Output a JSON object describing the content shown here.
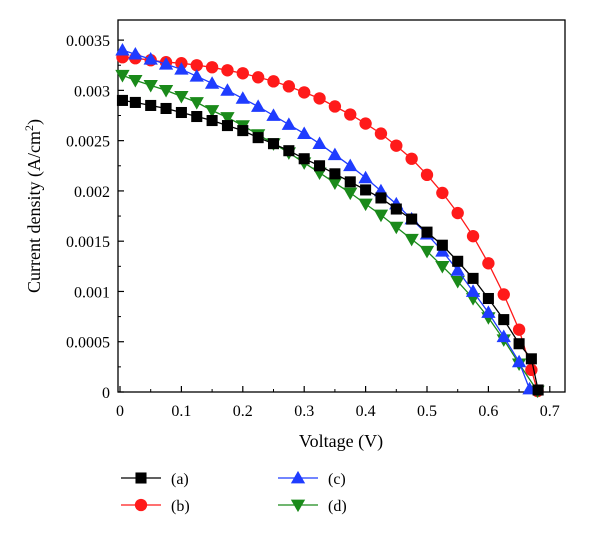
{
  "chart_data": {
    "type": "line",
    "title": "",
    "xlabel": "Voltage (V)",
    "ylabel": "Current density (A/cm²)",
    "ylabel_parts": {
      "main": "Current density (A/cm",
      "sup": "2",
      "tail": ")"
    },
    "xlim": [
      0,
      0.75
    ],
    "ylim": [
      0,
      0.0037
    ],
    "x_ticks": [
      "0",
      "0.1",
      "0.2",
      "0.3",
      "0.4",
      "0.5",
      "0.6",
      "0.7"
    ],
    "y_ticks": [
      "0",
      "0.0005",
      "0.001",
      "0.0015",
      "0.002",
      "0.0025",
      "0.003",
      "0.0035"
    ],
    "grid": false,
    "legend_position": "bottom",
    "series": [
      {
        "name": "(a)",
        "color": "#000000",
        "marker": "square",
        "x": [
          0.004,
          0.025,
          0.05,
          0.075,
          0.1,
          0.125,
          0.15,
          0.175,
          0.2,
          0.225,
          0.25,
          0.275,
          0.3,
          0.325,
          0.35,
          0.375,
          0.4,
          0.425,
          0.45,
          0.475,
          0.5,
          0.525,
          0.55,
          0.575,
          0.6,
          0.625,
          0.65,
          0.67,
          0.681
        ],
        "y": [
          0.0029,
          0.00288,
          0.00285,
          0.00282,
          0.00278,
          0.00274,
          0.0027,
          0.00265,
          0.0026,
          0.00253,
          0.00247,
          0.0024,
          0.00232,
          0.00225,
          0.00217,
          0.00209,
          0.00201,
          0.00193,
          0.00182,
          0.00172,
          0.00159,
          0.00146,
          0.0013,
          0.00113,
          0.00093,
          0.00072,
          0.00048,
          0.00033,
          2e-05
        ]
      },
      {
        "name": "(b)",
        "color": "#ff1a1a",
        "marker": "circle",
        "x": [
          0.004,
          0.025,
          0.05,
          0.075,
          0.1,
          0.125,
          0.15,
          0.175,
          0.2,
          0.225,
          0.25,
          0.275,
          0.3,
          0.325,
          0.35,
          0.375,
          0.4,
          0.425,
          0.45,
          0.475,
          0.5,
          0.525,
          0.55,
          0.575,
          0.6,
          0.625,
          0.65,
          0.67,
          0.68
        ],
        "y": [
          0.00333,
          0.00332,
          0.0033,
          0.00328,
          0.00327,
          0.00325,
          0.00323,
          0.0032,
          0.00317,
          0.00313,
          0.00309,
          0.00304,
          0.00298,
          0.00292,
          0.00284,
          0.00276,
          0.00267,
          0.00257,
          0.00245,
          0.00232,
          0.00216,
          0.00198,
          0.00178,
          0.00155,
          0.00128,
          0.00097,
          0.00062,
          0.00022,
          1e-05
        ]
      },
      {
        "name": "(c)",
        "color": "#1f3cff",
        "marker": "triangle-up",
        "x": [
          0.004,
          0.025,
          0.05,
          0.075,
          0.1,
          0.125,
          0.15,
          0.175,
          0.2,
          0.225,
          0.25,
          0.275,
          0.3,
          0.325,
          0.35,
          0.375,
          0.4,
          0.425,
          0.45,
          0.475,
          0.5,
          0.525,
          0.55,
          0.575,
          0.6,
          0.625,
          0.65,
          0.667
        ],
        "y": [
          0.0034,
          0.00336,
          0.00331,
          0.00326,
          0.00321,
          0.00314,
          0.00307,
          0.003,
          0.00292,
          0.00284,
          0.00275,
          0.00266,
          0.00257,
          0.00247,
          0.00236,
          0.00225,
          0.00213,
          0.002,
          0.00187,
          0.00172,
          0.00157,
          0.0014,
          0.00121,
          0.001,
          0.00079,
          0.00055,
          0.0003,
          3e-05
        ]
      },
      {
        "name": "(d)",
        "color": "#1a8a1a",
        "marker": "triangle-down",
        "x": [
          0.004,
          0.025,
          0.05,
          0.075,
          0.1,
          0.125,
          0.15,
          0.175,
          0.2,
          0.225,
          0.25,
          0.275,
          0.3,
          0.325,
          0.35,
          0.375,
          0.4,
          0.425,
          0.45,
          0.475,
          0.5,
          0.525,
          0.55,
          0.575,
          0.6,
          0.625,
          0.65,
          0.68
        ],
        "y": [
          0.00315,
          0.0031,
          0.00305,
          0.003,
          0.00294,
          0.00288,
          0.0028,
          0.00273,
          0.00265,
          0.00256,
          0.00247,
          0.00238,
          0.00228,
          0.00218,
          0.00208,
          0.00198,
          0.00187,
          0.00176,
          0.00164,
          0.00152,
          0.0014,
          0.00125,
          0.0011,
          0.00093,
          0.00074,
          0.00052,
          0.00028,
          1e-05
        ]
      }
    ]
  }
}
